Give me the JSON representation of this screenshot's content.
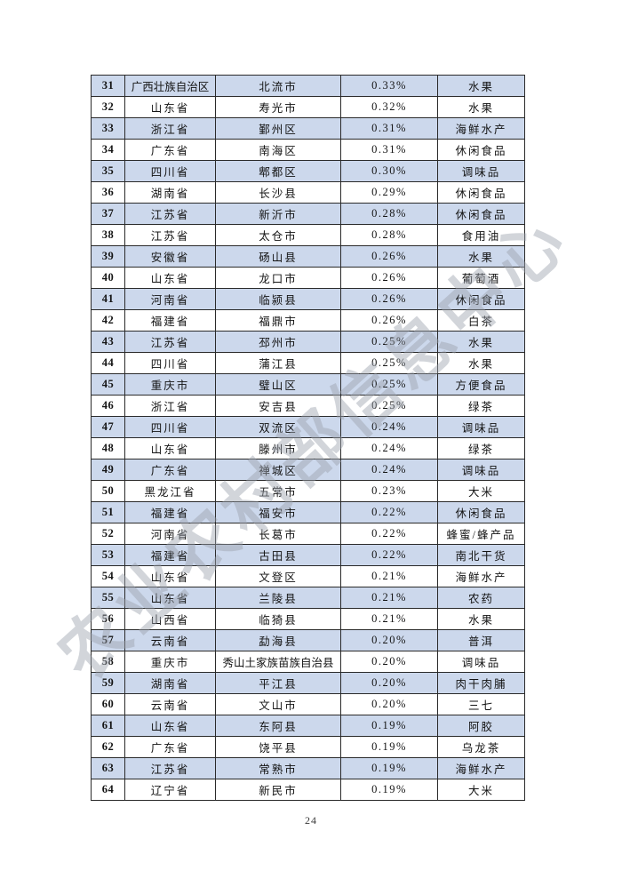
{
  "watermark": {
    "text": "农业农村部信息中心"
  },
  "footer": {
    "page_number": "24"
  },
  "colors": {
    "row_alt": "#ccd8ec",
    "border": "#2a2a2a"
  },
  "table": {
    "rows": [
      [
        "31",
        "广西壮族自治区",
        "北流市",
        "0.33%",
        "水果"
      ],
      [
        "32",
        "山东省",
        "寿光市",
        "0.32%",
        "水果"
      ],
      [
        "33",
        "浙江省",
        "鄞州区",
        "0.31%",
        "海鲜水产"
      ],
      [
        "34",
        "广东省",
        "南海区",
        "0.31%",
        "休闲食品"
      ],
      [
        "35",
        "四川省",
        "郫都区",
        "0.30%",
        "调味品"
      ],
      [
        "36",
        "湖南省",
        "长沙县",
        "0.29%",
        "休闲食品"
      ],
      [
        "37",
        "江苏省",
        "新沂市",
        "0.28%",
        "休闲食品"
      ],
      [
        "38",
        "江苏省",
        "太仓市",
        "0.28%",
        "食用油"
      ],
      [
        "39",
        "安徽省",
        "砀山县",
        "0.26%",
        "水果"
      ],
      [
        "40",
        "山东省",
        "龙口市",
        "0.26%",
        "葡萄酒"
      ],
      [
        "41",
        "河南省",
        "临颍县",
        "0.26%",
        "休闲食品"
      ],
      [
        "42",
        "福建省",
        "福鼎市",
        "0.26%",
        "白茶"
      ],
      [
        "43",
        "江苏省",
        "邳州市",
        "0.25%",
        "水果"
      ],
      [
        "44",
        "四川省",
        "蒲江县",
        "0.25%",
        "水果"
      ],
      [
        "45",
        "重庆市",
        "璧山区",
        "0.25%",
        "方便食品"
      ],
      [
        "46",
        "浙江省",
        "安吉县",
        "0.25%",
        "绿茶"
      ],
      [
        "47",
        "四川省",
        "双流区",
        "0.24%",
        "调味品"
      ],
      [
        "48",
        "山东省",
        "滕州市",
        "0.24%",
        "绿茶"
      ],
      [
        "49",
        "广东省",
        "禅城区",
        "0.24%",
        "调味品"
      ],
      [
        "50",
        "黑龙江省",
        "五常市",
        "0.23%",
        "大米"
      ],
      [
        "51",
        "福建省",
        "福安市",
        "0.22%",
        "休闲食品"
      ],
      [
        "52",
        "河南省",
        "长葛市",
        "0.22%",
        "蜂蜜/蜂产品"
      ],
      [
        "53",
        "福建省",
        "古田县",
        "0.22%",
        "南北干货"
      ],
      [
        "54",
        "山东省",
        "文登区",
        "0.21%",
        "海鲜水产"
      ],
      [
        "55",
        "山东省",
        "兰陵县",
        "0.21%",
        "农药"
      ],
      [
        "56",
        "山西省",
        "临猗县",
        "0.21%",
        "水果"
      ],
      [
        "57",
        "云南省",
        "勐海县",
        "0.20%",
        "普洱"
      ],
      [
        "58",
        "重庆市",
        "秀山土家族苗族自治县",
        "0.20%",
        "调味品"
      ],
      [
        "59",
        "湖南省",
        "平江县",
        "0.20%",
        "肉干肉脯"
      ],
      [
        "60",
        "云南省",
        "文山市",
        "0.20%",
        "三七"
      ],
      [
        "61",
        "山东省",
        "东阿县",
        "0.19%",
        "阿胶"
      ],
      [
        "62",
        "广东省",
        "饶平县",
        "0.19%",
        "乌龙茶"
      ],
      [
        "63",
        "江苏省",
        "常熟市",
        "0.19%",
        "海鲜水产"
      ],
      [
        "64",
        "辽宁省",
        "新民市",
        "0.19%",
        "大米"
      ]
    ]
  }
}
